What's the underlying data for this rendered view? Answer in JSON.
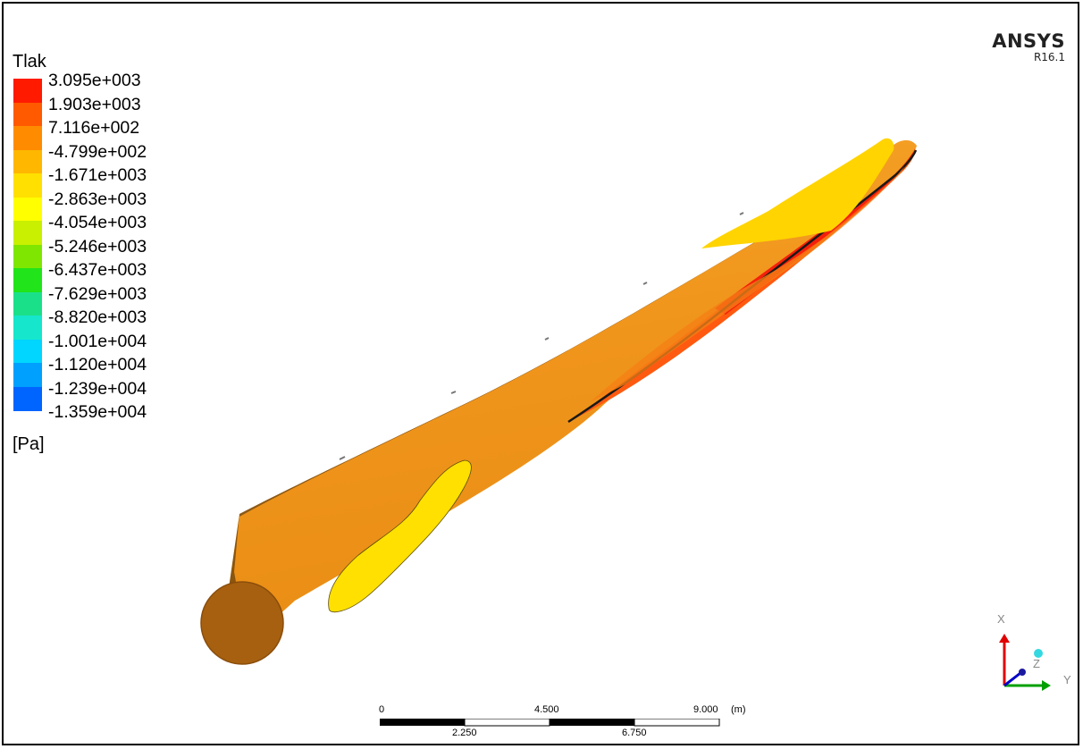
{
  "legend": {
    "title": "Tlak",
    "units": "[Pa]",
    "labels": [
      "3.095e+003",
      "1.903e+003",
      "7.116e+002",
      "-4.799e+002",
      "-1.671e+003",
      "-2.863e+003",
      "-4.054e+003",
      "-5.246e+003",
      "-6.437e+003",
      "-7.629e+003",
      "-8.820e+003",
      "-1.001e+004",
      "-1.120e+004",
      "-1.239e+004",
      "-1.359e+004"
    ],
    "colors": [
      "#ff1a00",
      "#ff5a00",
      "#ff8c00",
      "#ffb700",
      "#ffe000",
      "#ffff00",
      "#c8f000",
      "#7ee600",
      "#22e41a",
      "#1be08a",
      "#16e6cc",
      "#00d6ff",
      "#00a0ff",
      "#0064ff",
      "#1414ff"
    ]
  },
  "brand": {
    "name": "ANSYS",
    "version": "R16.1"
  },
  "scale_bar": {
    "top_labels": [
      "0",
      "4.500",
      "9.000",
      "(m)"
    ],
    "bottom_labels": [
      "2.250",
      "6.750"
    ]
  },
  "triad": {
    "x_label": "X",
    "y_label": "Y",
    "z_label": "Z",
    "x_color": "#e00000",
    "y_color": "#00a000",
    "z_color": "#0000c8"
  },
  "model": {
    "body_color": "#f39a1f",
    "root_color": "#a85c0f",
    "yellow_region_color": "#ffe000",
    "red_region_color": "#ff4a10"
  }
}
